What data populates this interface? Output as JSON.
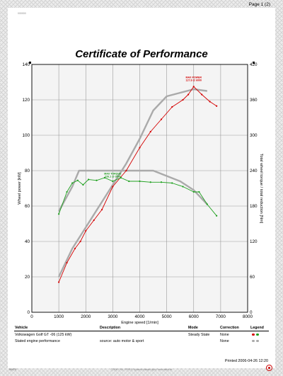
{
  "page": {
    "page_number": "Page 1 (2)",
    "corner_id": "000000",
    "printed": "Printed 2006-04-26 12:20",
    "footer_left": "00470",
    "footer_center": "©2006 / P&L / PRS-5 / dynamic chassis dyno / www.maha.de",
    "logo_icon": "maha-logo-icon"
  },
  "chart_data": {
    "type": "line",
    "title": "Certificate of Performance",
    "xlabel": "Engine speed [1/min]",
    "ylabel": "Wheel power [kW]",
    "y2label": "Total wheel torque / total reduction [Nm]",
    "xlim": [
      0,
      8000
    ],
    "ylim": [
      0,
      140
    ],
    "y2lim": [
      0,
      420
    ],
    "x_ticks": [
      "0",
      "1000",
      "2000",
      "3000",
      "4000",
      "5000",
      "6000",
      "7000",
      "8000"
    ],
    "y_ticks": [
      "0",
      "20",
      "40",
      "60",
      "80",
      "100",
      "120",
      "140"
    ],
    "y2_ticks": [
      "0",
      "60",
      "120",
      "180",
      "240",
      "300",
      "360",
      "420"
    ],
    "grid": true,
    "series": [
      {
        "name": "Volkswagen Golf GT -06 (125 kW) – power",
        "axis": "left",
        "color": "#d40000",
        "x": [
          1000,
          1300,
          1600,
          1800,
          2000,
          2300,
          2600,
          3000,
          3500,
          4000,
          4400,
          4800,
          5200,
          5600,
          5800,
          6000,
          6300,
          6600,
          6850
        ],
        "y": [
          17,
          28,
          36,
          40,
          46,
          52,
          58,
          71,
          80,
          93,
          102,
          109,
          116,
          120,
          123,
          127.5,
          123,
          119,
          116.5
        ]
      },
      {
        "name": "Volkswagen Golf GT -06 (125 kW) – torque",
        "axis": "left",
        "color": "#1ea01e",
        "x": [
          1000,
          1300,
          1500,
          1700,
          1900,
          2100,
          2400,
          2700,
          3000,
          3300,
          3600,
          4000,
          4400,
          4800,
          5200,
          5600,
          6000,
          6200,
          6500,
          6850
        ],
        "y": [
          55.5,
          68,
          73,
          74.5,
          72,
          75,
          74.5,
          76,
          74,
          76,
          74,
          74,
          73.5,
          73.5,
          73,
          71,
          68,
          68,
          61,
          54.5
        ]
      },
      {
        "name": "Stated engine performance – power",
        "axis": "left",
        "color": "#aaaaaa",
        "x": [
          1000,
          1500,
          2000,
          2500,
          3000,
          3500,
          4000,
          4500,
          5000,
          5500,
          6000,
          6500
        ],
        "y": [
          20,
          36,
          48,
          60,
          72,
          84,
          98,
          114,
          122,
          124,
          126,
          125
        ]
      },
      {
        "name": "Stated engine performance – torque",
        "axis": "left",
        "color": "#aaaaaa",
        "x": [
          1000,
          1500,
          1750,
          2000,
          3000,
          4000,
          4500,
          5000,
          5500,
          6000,
          6500
        ],
        "y": [
          57,
          71,
          80,
          80,
          80,
          80,
          80,
          77,
          74,
          69,
          61
        ]
      }
    ],
    "annotations": [
      {
        "lines": [
          "MAX POWER",
          "127.8 @ 6000"
        ],
        "color": "#d40000",
        "x": 6000,
        "y": 127.8
      },
      {
        "lines": [
          "MAX TORQUE",
          "226.1 @ 3000"
        ],
        "color": "#1ea01e",
        "x": 3000,
        "y": 75.4
      }
    ]
  },
  "legend_table": {
    "headers": {
      "vehicle": "Vehicle",
      "description": "Description",
      "mode": "Mode",
      "correction": "Correction",
      "legend": "Legend"
    },
    "rows": [
      {
        "vehicle": "Volkswagen Golf GT -06 (125 kW)",
        "description": "",
        "mode": "Steady State",
        "correction": "None",
        "colors": [
          "#d40000",
          "#1ea01e"
        ]
      },
      {
        "vehicle": "Stated engine performance",
        "description": "source: auto motor & sport",
        "mode": "",
        "correction": "None",
        "colors": [
          "#aaaaaa",
          "#aaaaaa"
        ]
      }
    ]
  }
}
